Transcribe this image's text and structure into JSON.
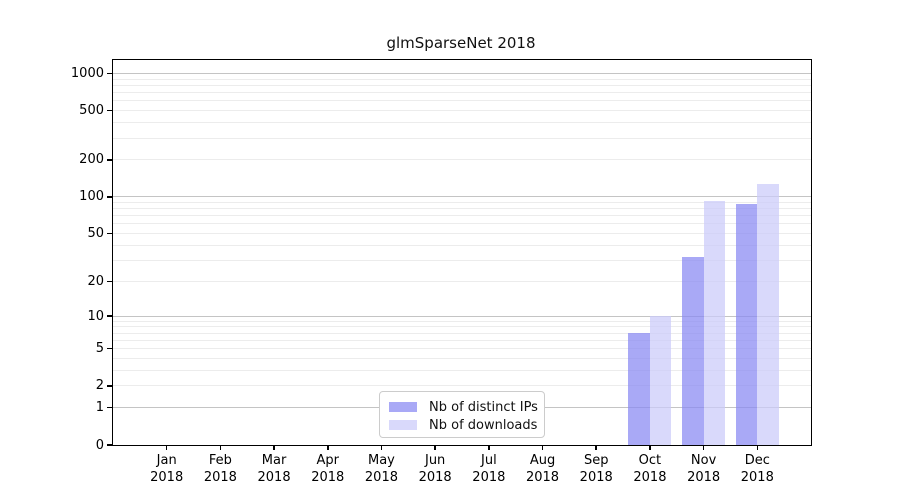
{
  "title": "glmSparseNet 2018",
  "colors": {
    "ips_bar": "#8888f3b8",
    "downloads_bar": "#cbcbf9b8",
    "grid_major": "#c4c4c4",
    "grid_minor": "#ececec",
    "axis": "#000000"
  },
  "legend": {
    "items": [
      "Nb of distinct IPs",
      "Nb of downloads"
    ],
    "position": "lower center"
  },
  "chart_data": {
    "type": "bar",
    "title": "glmSparseNet 2018",
    "categories": [
      "Jan",
      "Feb",
      "Mar",
      "Apr",
      "May",
      "Jun",
      "Jul",
      "Aug",
      "Sep",
      "Oct",
      "Nov",
      "Dec"
    ],
    "x_tick_second_line": "2018",
    "series": [
      {
        "name": "Nb of distinct IPs",
        "color": "#8888f3b8",
        "values": [
          0,
          0,
          0,
          0,
          0,
          0,
          0,
          0,
          0,
          7,
          32,
          87
        ]
      },
      {
        "name": "Nb of downloads",
        "color": "#cbcbf9b8",
        "values": [
          0,
          0,
          0,
          0,
          0,
          0,
          0,
          0,
          0,
          10,
          92,
          127
        ]
      }
    ],
    "yscale": "log1p",
    "yticks": [
      0,
      1,
      2,
      5,
      10,
      20,
      50,
      100,
      200,
      500,
      1000
    ],
    "grid_major_values": [
      1,
      10,
      100,
      1000
    ],
    "grid_minor_values": [
      2,
      3,
      4,
      5,
      6,
      7,
      8,
      9,
      20,
      30,
      40,
      50,
      60,
      70,
      80,
      90,
      200,
      300,
      400,
      500,
      600,
      700,
      800,
      900
    ],
    "ylim": [
      0,
      1070
    ],
    "grid": true,
    "legend_position": "lower center",
    "xlabel": "",
    "ylabel": ""
  }
}
